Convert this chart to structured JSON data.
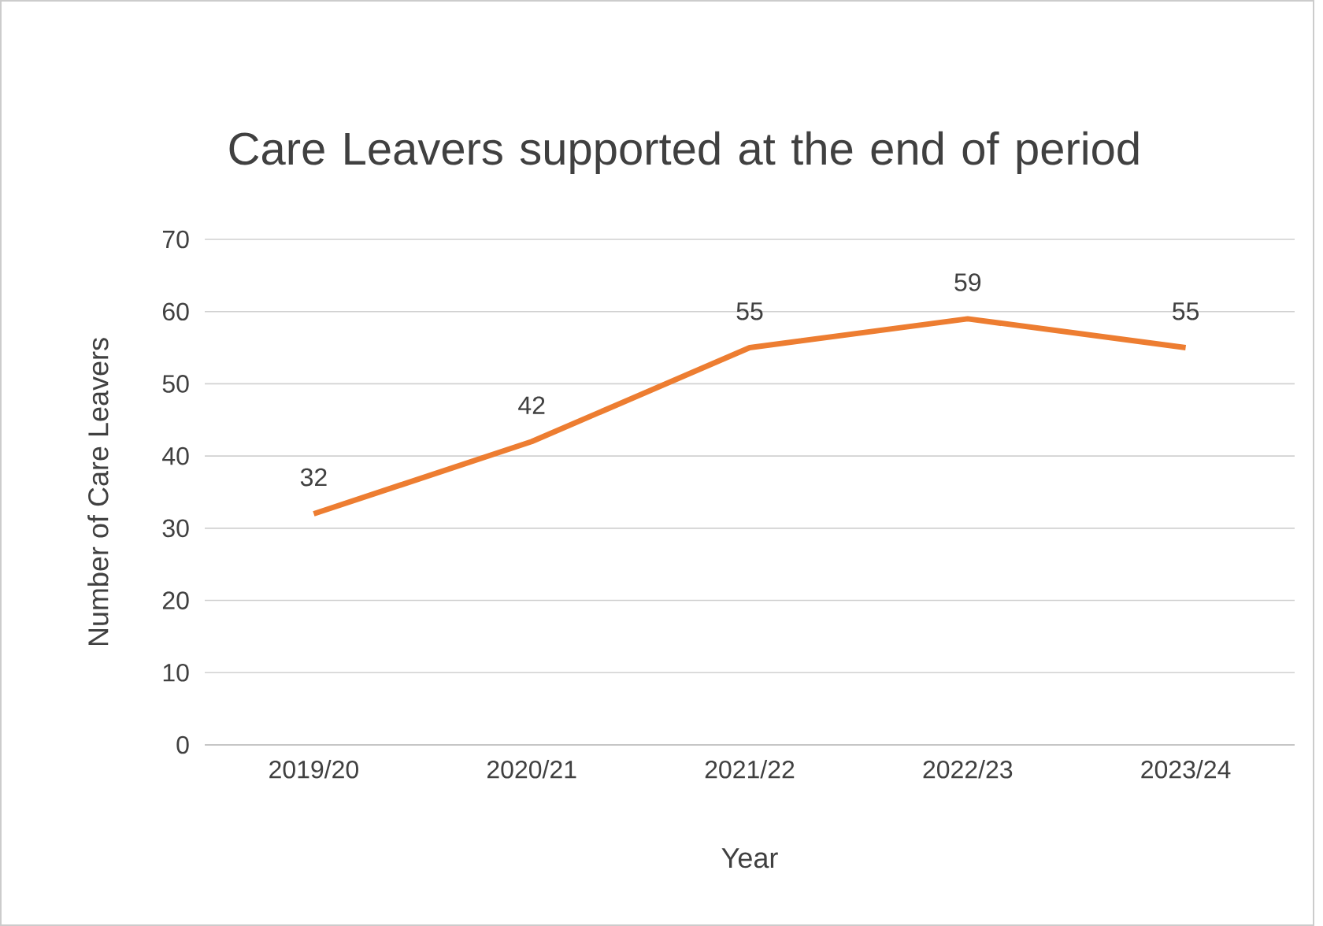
{
  "chart_data": {
    "type": "line",
    "title": "Care Leavers supported at the end of period",
    "xlabel": "Year",
    "ylabel": "Number of Care Leavers",
    "categories": [
      "2019/20",
      "2020/21",
      "2021/22",
      "2022/23",
      "2023/24"
    ],
    "series": [
      {
        "color": "#ed7d31",
        "values": [
          32,
          42,
          55,
          59,
          55
        ]
      }
    ],
    "ylim": [
      0,
      70
    ],
    "yticks": [
      0,
      10,
      20,
      30,
      40,
      50,
      60,
      70
    ],
    "grid": "y",
    "data_labels": true,
    "marker": "none",
    "line_style": "solid"
  }
}
